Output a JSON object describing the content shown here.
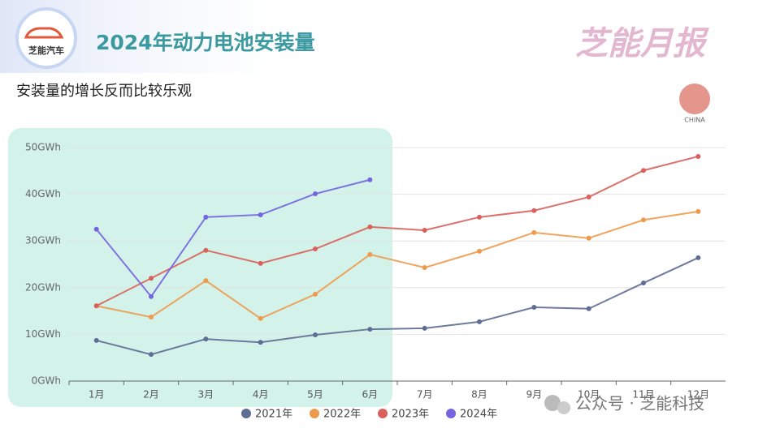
{
  "logo_text": "芝能汽车",
  "header_title": "2024年动力电池安装量",
  "brand": "芝能月报",
  "subtitle": "安装量的增长反而比较乐观",
  "flag_label": "CHINA",
  "watermark": "公众号 · 芝能科技",
  "chart_data": {
    "type": "line",
    "categories": [
      "1月",
      "2月",
      "3月",
      "4月",
      "5月",
      "6月",
      "7月",
      "8月",
      "9月",
      "10月",
      "11月",
      "12月"
    ],
    "series": [
      {
        "name": "2021年",
        "color": "#5d6d94",
        "values": [
          8.7,
          5.7,
          9.0,
          8.3,
          9.9,
          11.1,
          11.3,
          12.7,
          15.8,
          15.5,
          21.0,
          26.4
        ]
      },
      {
        "name": "2022年",
        "color": "#ee9a4d",
        "values": [
          16.1,
          13.7,
          21.5,
          13.4,
          18.6,
          27.1,
          24.3,
          27.8,
          31.8,
          30.6,
          34.5,
          36.3
        ]
      },
      {
        "name": "2023年",
        "color": "#d9605b",
        "values": [
          16.1,
          22.0,
          28.0,
          25.2,
          28.3,
          33.0,
          32.3,
          35.1,
          36.5,
          39.4,
          45.1,
          48.1
        ]
      },
      {
        "name": "2024年",
        "color": "#7464e0",
        "values": [
          32.5,
          18.1,
          35.1,
          35.6,
          40.1,
          43.1,
          null,
          null,
          null,
          null,
          null,
          null
        ]
      }
    ],
    "ylim": [
      0,
      50
    ],
    "yticks": [
      {
        "value": 0,
        "label": "0GWh"
      },
      {
        "value": 10,
        "label": "10GWh"
      },
      {
        "value": 20,
        "label": "20GWh"
      },
      {
        "value": 30,
        "label": "30GWh"
      },
      {
        "value": 40,
        "label": "40GWh"
      },
      {
        "value": 50,
        "label": "50GWh"
      }
    ],
    "grid": true,
    "legend": "bottom"
  }
}
